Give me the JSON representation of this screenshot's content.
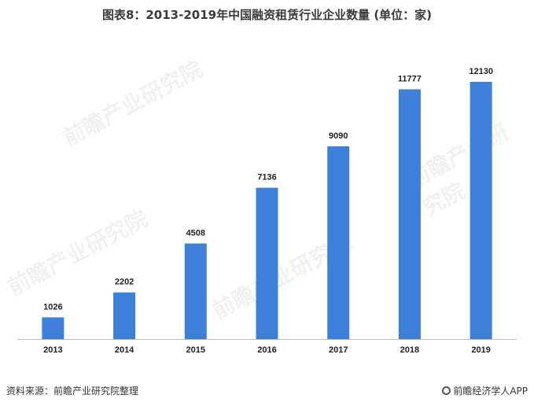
{
  "title": "图表8：2013-2019年中国融资租赁行业企业数量 (单位：家)",
  "source": "资料来源：前瞻产业研究院整理",
  "brand": "前瞻经济学人APP",
  "watermark": "前瞻产业研究院",
  "colors": {
    "bar": "#3d7fd9"
  },
  "chart_data": {
    "type": "bar",
    "title": "图表8：2013-2019年中国融资租赁行业企业数量 (单位：家)",
    "categories": [
      "2013",
      "2014",
      "2015",
      "2016",
      "2017",
      "2018",
      "2019"
    ],
    "values": [
      1026,
      2202,
      4508,
      7136,
      9090,
      11777,
      12130
    ],
    "xlabel": "",
    "ylabel": "",
    "ylim": [
      0,
      12130
    ],
    "grid": false,
    "legend": "none"
  }
}
